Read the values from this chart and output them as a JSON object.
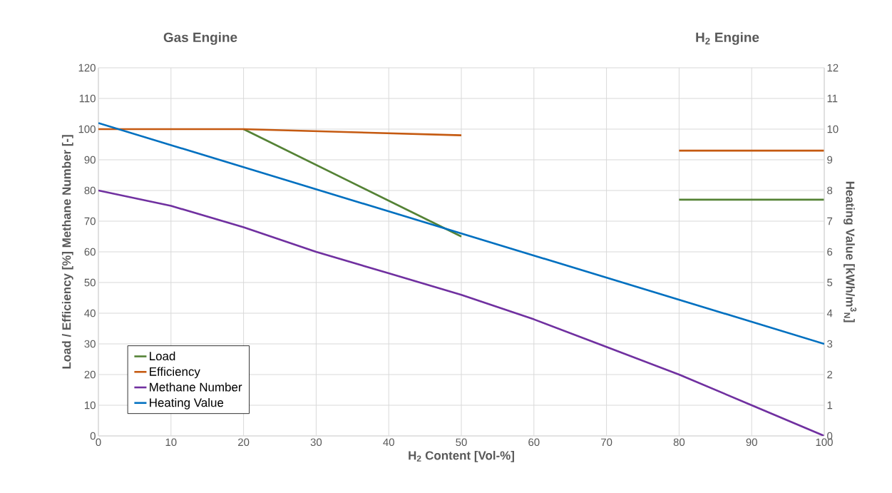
{
  "chart_data": {
    "type": "line",
    "xlabel": "H$_{2}$ Content [Vol-%]",
    "ylabel": "Load / Efficiency [%]  Methane Number [-]",
    "y2label": "Heating Value [kWh/m$^{3}$$_{N}$]",
    "annotations": [
      "Gas Engine",
      "H$_{2}$ Engine"
    ],
    "series": [
      {
        "name": "Load",
        "color": "#548235",
        "x": [
          20,
          50,
          65,
          80,
          100
        ],
        "values": [
          100,
          65,
          null,
          77,
          77
        ]
      },
      {
        "name": "Efficiency",
        "color": "#c55a11",
        "x": [
          0,
          20,
          50,
          65,
          80,
          100
        ],
        "values": [
          100,
          100,
          98,
          null,
          93,
          93
        ]
      },
      {
        "name": "Methane Number",
        "color": "#7030a0",
        "x": [
          0,
          10,
          20,
          30,
          40,
          50,
          60,
          70,
          80,
          90,
          100
        ],
        "values": [
          80,
          75,
          68,
          60,
          53,
          46,
          38,
          29,
          20,
          10,
          0
        ]
      },
      {
        "name": "Heating Value",
        "color": "#0070c0",
        "axis": "y2",
        "x": [
          0,
          50,
          100
        ],
        "values": [
          10.2,
          6.6,
          3.0
        ]
      }
    ],
    "xlim": [
      0,
      100
    ],
    "xticks": [
      0,
      10,
      20,
      30,
      40,
      50,
      60,
      70,
      80,
      90,
      100
    ],
    "ylim": [
      0,
      120
    ],
    "yticks": [
      0,
      10,
      20,
      30,
      40,
      50,
      60,
      70,
      80,
      90,
      100,
      110,
      120
    ],
    "y2lim": [
      0,
      12
    ],
    "y2ticks": [
      0,
      1,
      2,
      3,
      4,
      5,
      6,
      7,
      8,
      9,
      10,
      11,
      12
    ],
    "grid": true,
    "legend": "bottom left",
    "marker": "none",
    "line_style": "solid"
  }
}
